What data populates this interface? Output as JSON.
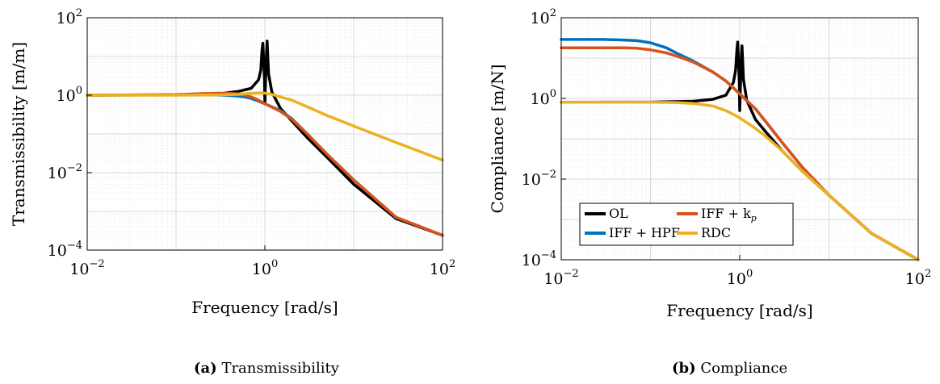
{
  "chart_data": [
    {
      "type": "line",
      "title": "",
      "xlabel": "Frequency [rad/s]",
      "ylabel": "Transmissibility [m/m]",
      "xscale": "log",
      "yscale": "log",
      "xlim": [
        0.01,
        100
      ],
      "ylim": [
        0.0001,
        100
      ],
      "xticks": [
        {
          "base": "10",
          "exp": "−2",
          "value": 0.01
        },
        {
          "base": "10",
          "exp": "0",
          "value": 1
        },
        {
          "base": "10",
          "exp": "2",
          "value": 100
        }
      ],
      "yticks": [
        {
          "base": "10",
          "exp": "−4",
          "value": 0.0001
        },
        {
          "base": "10",
          "exp": "−2",
          "value": 0.01
        },
        {
          "base": "10",
          "exp": "0",
          "value": 1
        },
        {
          "base": "10",
          "exp": "2",
          "value": 100
        }
      ],
      "grid": true,
      "series": [
        {
          "name": "OL",
          "color": "#000000",
          "x": [
            0.01,
            0.1,
            0.3,
            0.5,
            0.7,
            0.85,
            0.9,
            0.93,
            0.95,
            0.97,
            0.99,
            1.0,
            1.02,
            1.04,
            1.06,
            1.08,
            1.1,
            1.2,
            1.5,
            2,
            3,
            5,
            10,
            30,
            100
          ],
          "y": [
            1.0,
            1.02,
            1.08,
            1.25,
            1.5,
            2.5,
            4.5,
            15,
            22,
            8,
            2.5,
            0.6,
            2.8,
            10,
            25,
            9,
            3.5,
            1.2,
            0.45,
            0.22,
            0.08,
            0.025,
            0.005,
            0.00065,
            0.00024
          ]
        },
        {
          "name": "IFF + HPF",
          "color": "#0072BD",
          "x": [
            0.01,
            0.1,
            0.2,
            0.3,
            0.4,
            0.5,
            0.6,
            0.7,
            0.8,
            1.0,
            1.5,
            2,
            3,
            5,
            10,
            30,
            100
          ],
          "y": [
            1.0,
            1.02,
            1.03,
            1.01,
            0.98,
            0.95,
            0.9,
            0.82,
            0.74,
            0.6,
            0.4,
            0.25,
            0.1,
            0.03,
            0.0065,
            0.0007,
            0.00024
          ]
        },
        {
          "name": "IFF + k_p",
          "color": "#D95319",
          "x": [
            0.01,
            0.1,
            0.2,
            0.3,
            0.4,
            0.5,
            0.6,
            0.7,
            0.8,
            1.0,
            1.5,
            2,
            3,
            5,
            10,
            30,
            100
          ],
          "y": [
            1.0,
            1.04,
            1.1,
            1.13,
            1.12,
            1.08,
            1.0,
            0.9,
            0.8,
            0.6,
            0.38,
            0.24,
            0.1,
            0.03,
            0.0065,
            0.0007,
            0.00024
          ]
        },
        {
          "name": "RDC",
          "color": "#EDB120",
          "x": [
            0.01,
            0.1,
            0.3,
            0.5,
            0.7,
            0.9,
            1.0,
            1.2,
            1.5,
            2,
            3,
            5,
            10,
            30,
            100
          ],
          "y": [
            1.0,
            1.0,
            1.02,
            1.05,
            1.12,
            1.15,
            1.13,
            1.05,
            0.9,
            0.75,
            0.5,
            0.3,
            0.16,
            0.06,
            0.021
          ]
        }
      ]
    },
    {
      "type": "line",
      "title": "",
      "xlabel": "Frequency [rad/s]",
      "ylabel": "Compliance [m/N]",
      "xscale": "log",
      "yscale": "log",
      "xlim": [
        0.01,
        100
      ],
      "ylim": [
        0.0001,
        100
      ],
      "xticks": [
        {
          "base": "10",
          "exp": "−2",
          "value": 0.01
        },
        {
          "base": "10",
          "exp": "0",
          "value": 1
        },
        {
          "base": "10",
          "exp": "2",
          "value": 100
        }
      ],
      "yticks": [
        {
          "base": "10",
          "exp": "−4",
          "value": 0.0001
        },
        {
          "base": "10",
          "exp": "−2",
          "value": 0.01
        },
        {
          "base": "10",
          "exp": "0",
          "value": 1
        },
        {
          "base": "10",
          "exp": "2",
          "value": 100
        }
      ],
      "grid": true,
      "legend": "bottom-left",
      "series": [
        {
          "name": "OL",
          "color": "#000000",
          "x": [
            0.01,
            0.1,
            0.3,
            0.5,
            0.7,
            0.85,
            0.9,
            0.93,
            0.95,
            0.97,
            0.99,
            1.0,
            1.02,
            1.04,
            1.06,
            1.08,
            1.1,
            1.2,
            1.5,
            2,
            3,
            5,
            10,
            30,
            100
          ],
          "y": [
            0.8,
            0.81,
            0.85,
            0.95,
            1.2,
            2.5,
            5,
            16,
            25,
            8,
            2.5,
            0.5,
            2.5,
            10,
            20,
            8,
            3,
            0.9,
            0.3,
            0.14,
            0.05,
            0.016,
            0.004,
            0.00045,
            0.0001
          ]
        },
        {
          "name": "IFF + HPF",
          "color": "#0072BD",
          "x": [
            0.01,
            0.03,
            0.05,
            0.07,
            0.1,
            0.15,
            0.2,
            0.3,
            0.5,
            0.7,
            1.0,
            1.5,
            2,
            3,
            5,
            10,
            30,
            100
          ],
          "y": [
            29,
            29,
            28,
            27,
            24,
            18,
            13,
            8.5,
            4.5,
            2.7,
            1.3,
            0.55,
            0.25,
            0.08,
            0.02,
            0.004,
            0.00045,
            0.0001
          ]
        },
        {
          "name": "IFF + k_p",
          "color": "#D95319",
          "x": [
            0.01,
            0.03,
            0.05,
            0.07,
            0.1,
            0.15,
            0.2,
            0.3,
            0.5,
            0.7,
            1.0,
            1.5,
            2,
            3,
            5,
            10,
            30,
            100
          ],
          "y": [
            18,
            18,
            18,
            17.5,
            16,
            13.5,
            11,
            8,
            4.5,
            2.7,
            1.3,
            0.55,
            0.25,
            0.08,
            0.02,
            0.004,
            0.00045,
            0.0001
          ]
        },
        {
          "name": "RDC",
          "color": "#EDB120",
          "x": [
            0.01,
            0.1,
            0.2,
            0.3,
            0.5,
            0.7,
            1.0,
            1.5,
            2,
            3,
            5,
            10,
            30,
            100
          ],
          "y": [
            0.8,
            0.8,
            0.79,
            0.75,
            0.65,
            0.5,
            0.33,
            0.18,
            0.11,
            0.05,
            0.016,
            0.004,
            0.00045,
            0.0001
          ]
        }
      ]
    }
  ],
  "legend": {
    "items": [
      {
        "label": "OL",
        "color": "#000000"
      },
      {
        "label": "IFF + k",
        "sub": "p",
        "color": "#D95319"
      },
      {
        "label": "IFF + HPF",
        "color": "#0072BD"
      },
      {
        "label": "RDC",
        "color": "#EDB120"
      }
    ]
  },
  "captions": [
    {
      "tag": "(a)",
      "text": "Transmissibility"
    },
    {
      "tag": "(b)",
      "text": "Compliance"
    }
  ]
}
